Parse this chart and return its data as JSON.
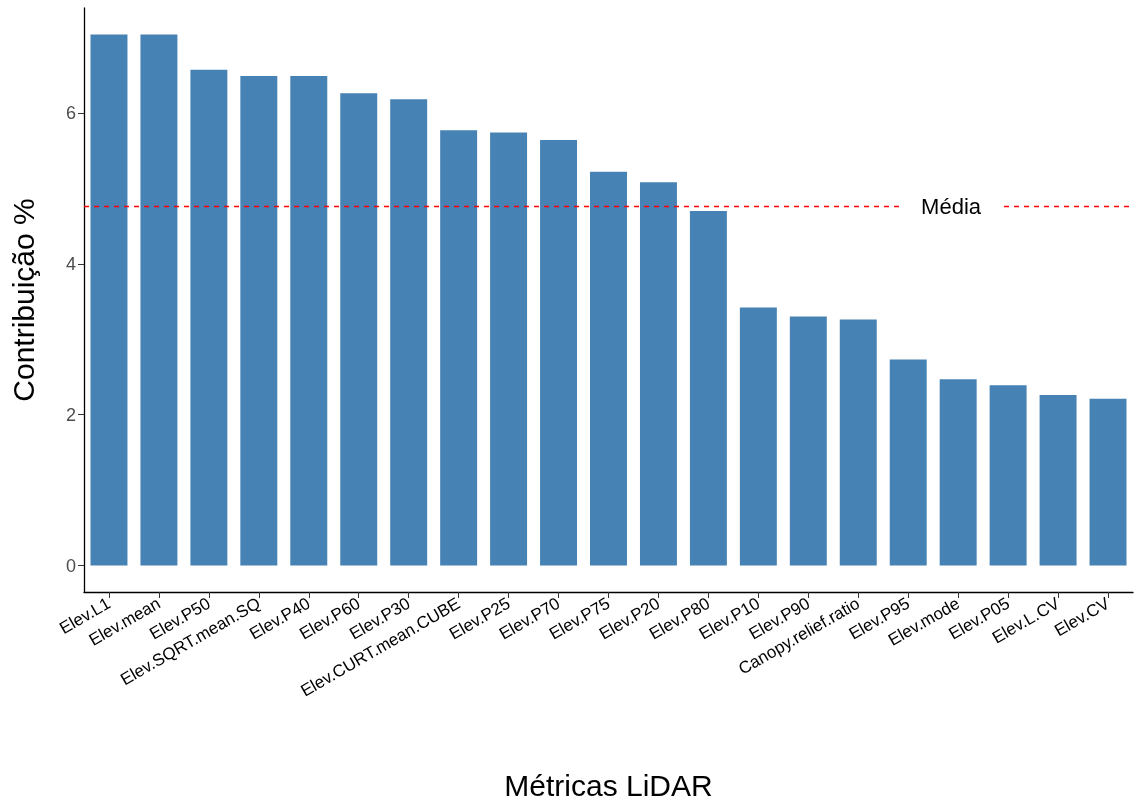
{
  "chart_data": {
    "type": "bar",
    "xlabel": "Métricas LiDAR",
    "ylabel": "Contribuição %",
    "categories": [
      "Elev.L1",
      "Elev.mean",
      "Elev.P50",
      "Elev.SQRT.mean.SQ",
      "Elev.P40",
      "Elev.P60",
      "Elev.P30",
      "Elev.CURT.mean.CUBE",
      "Elev.P25",
      "Elev.P70",
      "Elev.P75",
      "Elev.P20",
      "Elev.P80",
      "Elev.P10",
      "Elev.P90",
      "Canopy.relief.ratio",
      "Elev.P95",
      "Elev.mode",
      "Elev.P05",
      "Elev.L.CV",
      "Elev.CV"
    ],
    "values": [
      7.04,
      7.04,
      6.57,
      6.49,
      6.49,
      6.26,
      6.18,
      5.77,
      5.74,
      5.64,
      5.22,
      5.08,
      4.7,
      3.42,
      3.3,
      3.26,
      2.73,
      2.47,
      2.39,
      2.26,
      2.21
    ],
    "color": "#4682b4",
    "ylim": [
      -0.35,
      7.39
    ],
    "yticks": [
      0,
      2,
      4,
      6
    ],
    "grid": false,
    "ref_lines": [
      {
        "axis": "y",
        "value": 4.76,
        "label": "Média",
        "color": "#ff0000",
        "line_style": "dashed"
      }
    ]
  }
}
